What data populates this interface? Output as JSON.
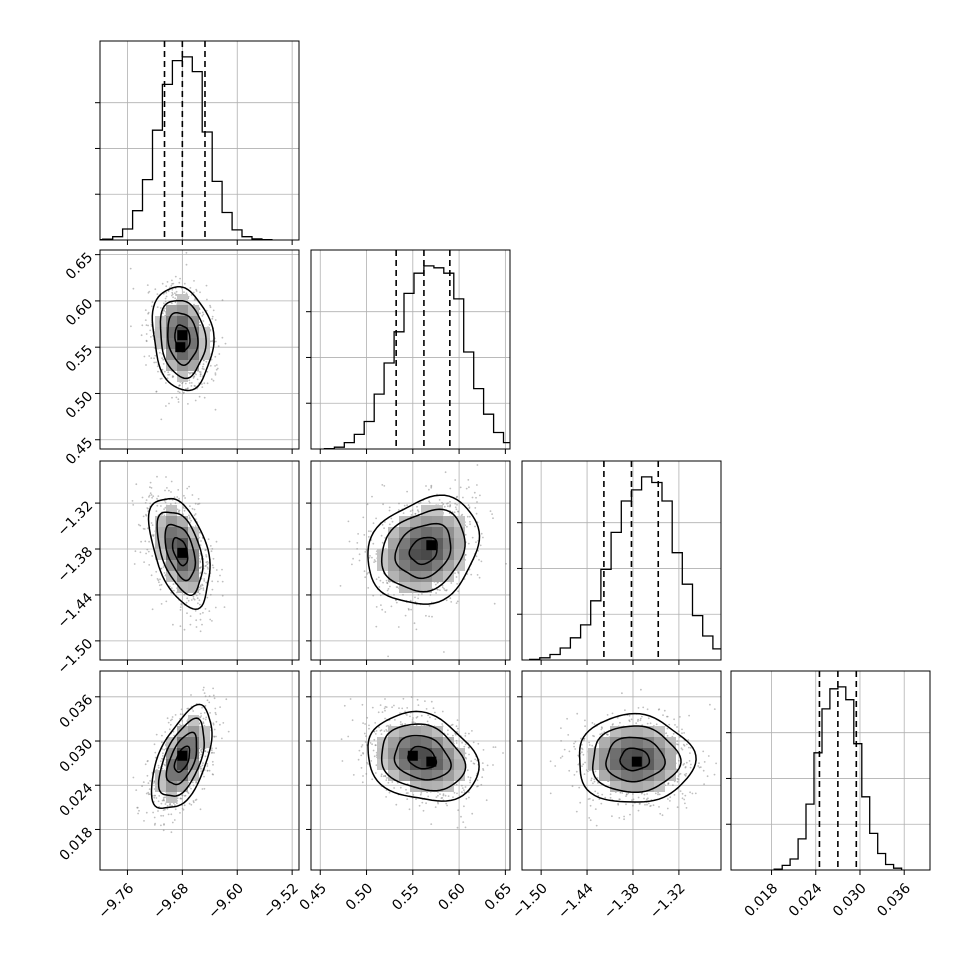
{
  "chart_data": {
    "type": "corner",
    "title": "",
    "parameters": [
      {
        "range": [
          -9.8,
          -9.51
        ],
        "ticks": [
          -9.76,
          -9.68,
          -9.6,
          -9.52
        ],
        "tick_labels": [
          "−9.76",
          "−9.68",
          "−9.60",
          "−9.52"
        ],
        "quantiles": [
          -9.706,
          -9.68,
          -9.647
        ],
        "hist_bin_width": 0.0145,
        "hist_counts": [
          2,
          5,
          18,
          60,
          160,
          330,
          600,
          850,
          980,
          1000,
          920,
          590,
          320,
          150,
          55,
          18,
          6,
          2
        ]
      },
      {
        "range": [
          0.44,
          0.655
        ],
        "ticks": [
          0.45,
          0.5,
          0.55,
          0.6,
          0.65
        ],
        "tick_labels": [
          "0.45",
          "0.50",
          "0.55",
          "0.60",
          "0.65"
        ],
        "quantiles": [
          0.532,
          0.562,
          0.59
        ],
        "hist_bin_width": 0.01075,
        "hist_counts": [
          2,
          10,
          35,
          80,
          150,
          300,
          470,
          640,
          850,
          960,
          1000,
          990,
          960,
          820,
          530,
          330,
          190,
          90,
          35,
          8
        ]
      },
      {
        "range": [
          -1.525,
          -1.265
        ],
        "ticks": [
          -1.5,
          -1.44,
          -1.38,
          -1.32
        ],
        "tick_labels": [
          "−1.50",
          "−1.44",
          "−1.38",
          "−1.32"
        ],
        "quantiles": [
          -1.418,
          -1.382,
          -1.347
        ],
        "hist_bin_width": 0.0133,
        "hist_counts": [
          3,
          12,
          30,
          65,
          120,
          190,
          320,
          490,
          690,
          860,
          920,
          990,
          960,
          860,
          580,
          410,
          240,
          130,
          60,
          20
        ]
      },
      {
        "range": [
          0.0125,
          0.0395
        ],
        "ticks": [
          0.018,
          0.024,
          0.03,
          0.036
        ],
        "tick_labels": [
          "0.018",
          "0.024",
          "0.030",
          "0.036"
        ],
        "quantiles": [
          0.0245,
          0.027,
          0.0295
        ],
        "hist_bin_width": 0.00108,
        "hist_counts": [
          5,
          25,
          60,
          170,
          360,
          640,
          880,
          990,
          1000,
          930,
          690,
          400,
          200,
          90,
          30,
          10
        ]
      }
    ],
    "pairs": [
      {
        "row": 1,
        "col": 0,
        "mean": [
          -9.68,
          0.56
        ],
        "std": [
          0.022,
          0.028
        ],
        "rho": -0.15,
        "hotspots": [
          [
            -9.68,
            0.563
          ],
          [
            -9.683,
            0.55
          ]
        ]
      },
      {
        "row": 2,
        "col": 0,
        "mean": [
          -9.683,
          -1.383
        ],
        "std": [
          0.022,
          0.036
        ],
        "rho": -0.45,
        "hotspots": [
          [
            -9.68,
            -1.385
          ]
        ]
      },
      {
        "row": 2,
        "col": 1,
        "mean": [
          0.562,
          -1.382
        ],
        "std": [
          0.03,
          0.035
        ],
        "rho": 0.2,
        "hotspots": [
          [
            0.57,
            -1.375
          ]
        ]
      },
      {
        "row": 3,
        "col": 0,
        "mean": [
          -9.68,
          0.0275
        ],
        "std": [
          0.022,
          0.0035
        ],
        "rho": 0.55,
        "hotspots": [
          [
            -9.68,
            0.028
          ]
        ]
      },
      {
        "row": 3,
        "col": 1,
        "mean": [
          0.56,
          0.0277
        ],
        "std": [
          0.03,
          0.003
        ],
        "rho": -0.2,
        "hotspots": [
          [
            0.55,
            0.028
          ],
          [
            0.57,
            0.0272
          ]
        ]
      },
      {
        "row": 3,
        "col": 2,
        "mean": [
          -1.378,
          0.0275
        ],
        "std": [
          0.038,
          0.003
        ],
        "rho": 0.0,
        "hotspots": [
          [
            -1.375,
            0.0272
          ]
        ]
      }
    ],
    "contour_levels": [
      0.5,
      1.0,
      1.5,
      2.0
    ],
    "grid": true,
    "colors": {
      "line": "#000000",
      "scatter": "#8a8a8a",
      "grid": "#b0b0b0",
      "density_dark": "#1e1e1e"
    }
  }
}
